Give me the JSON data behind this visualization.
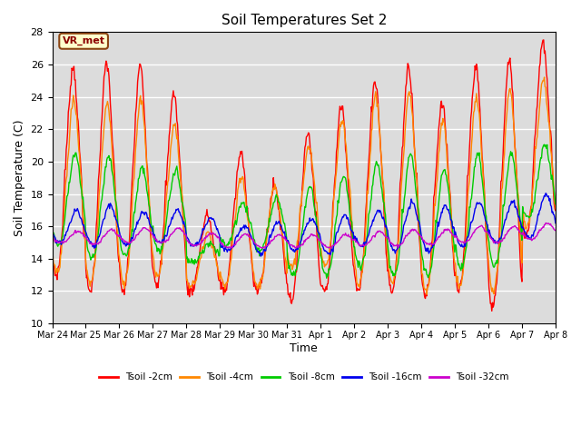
{
  "title": "Soil Temperatures Set 2",
  "xlabel": "Time",
  "ylabel": "Soil Temperature (C)",
  "ylim": [
    10,
    28
  ],
  "yticks": [
    10,
    12,
    14,
    16,
    18,
    20,
    22,
    24,
    26,
    28
  ],
  "annotation": "VR_met",
  "bg_color": "#dcdcdc",
  "grid_color": "white",
  "series": [
    {
      "label": "Tsoil -2cm",
      "color": "#ff0000",
      "lw": 1.0
    },
    {
      "label": "Tsoil -4cm",
      "color": "#ff8800",
      "lw": 1.0
    },
    {
      "label": "Tsoil -8cm",
      "color": "#00cc00",
      "lw": 1.0
    },
    {
      "label": "Tsoil -16cm",
      "color": "#0000ee",
      "lw": 1.0
    },
    {
      "label": "Tsoil -32cm",
      "color": "#cc00cc",
      "lw": 1.0
    }
  ],
  "x_tick_labels": [
    "Mar 24",
    "Mar 25",
    "Mar 26",
    "Mar 27",
    "Mar 28",
    "Mar 29",
    "Mar 30",
    "Mar 31",
    "Apr 1",
    "Apr 2",
    "Apr 3",
    "Apr 4",
    "Apr 5",
    "Apr 6",
    "Apr 7",
    "Apr 8"
  ],
  "num_days": 15,
  "points_per_day": 48
}
